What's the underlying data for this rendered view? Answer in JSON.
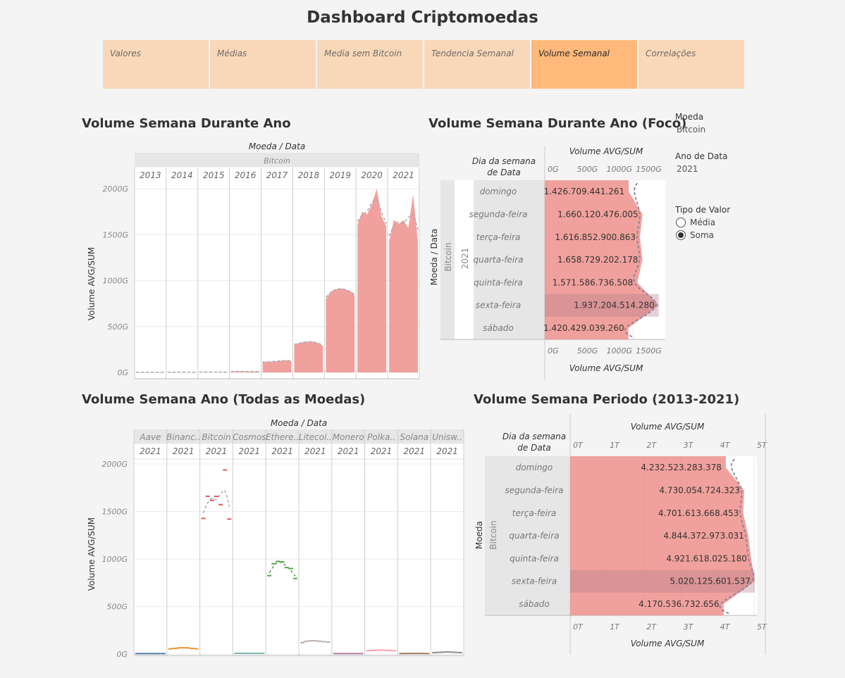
{
  "title": "Dashboard Criptomoedas",
  "tabs": [
    "Valores",
    "Médias",
    "Media sem Bitcoin",
    "Tendencia Semanal",
    "Volume Semanal",
    "Correlações"
  ],
  "active_tab": "Volume Semanal",
  "accent_colors": {
    "bar": "#ee8a84",
    "tab": "#f9d8ba",
    "tab_active": "#ffb97a"
  },
  "filters": {
    "moeda_label": "Moeda",
    "moeda_value": "Bitcoin",
    "ano_label": "Ano de Data",
    "ano_value": "2021",
    "tipo_label": "Tipo de Valor",
    "tipo_options": [
      "Média",
      "Soma"
    ],
    "tipo_selected": "Soma"
  },
  "chart1": {
    "title": "Volume Semana Durante Ano",
    "header_top": "Moeda / Data",
    "coin": "Bitcoin",
    "ylabel": "Volume AVG/SUM"
  },
  "chart2": {
    "title": "Volume Semana Durante Ano (Foco)",
    "col_header": "Dia da semana de Data",
    "axis_label": "Volume AVG/SUM",
    "row_header": "Moeda / Data",
    "coin": "Bitcoin",
    "year": "2021"
  },
  "chart3": {
    "title": "Volume Semana Ano (Todas as Moedas)",
    "header_top": "Moeda / Data",
    "ylabel": "Volume AVG/SUM"
  },
  "chart4": {
    "title": "Volume Semana Periodo (2013-2021)",
    "col_header": "Dia da semana de Data",
    "axis_label": "Volume AVG/SUM",
    "row_header": "Moeda",
    "coin": "Bitcoin"
  },
  "chart_data": [
    {
      "type": "area",
      "title": "Volume Semana Durante Ano",
      "ylabel": "Volume AVG/SUM",
      "yticks": [
        "0G",
        "500G",
        "1000G",
        "1500G",
        "2000G"
      ],
      "ylim": [
        0,
        2000
      ],
      "unit": "G",
      "categories": [
        "2013",
        "2014",
        "2015",
        "2016",
        "2017",
        "2018",
        "2019",
        "2020",
        "2021"
      ],
      "x_axis": "dia da semana (domingo..sábado) dentro de cada ano",
      "series": [
        {
          "values": [
            [
              1.5,
              1.8,
              1.8,
              1.7,
              1.6,
              1.4,
              1.2
            ],
            [
              2.5,
              3,
              3,
              2.8,
              2.6,
              2.4,
              2.2
            ],
            [
              3.5,
              4,
              4,
              3.8,
              3.6,
              3.3,
              3
            ],
            [
              10,
              11,
              11,
              11,
              10,
              10,
              9
            ],
            [
              110,
              115,
              118,
              122,
              128,
              132,
              125
            ],
            [
              300,
              320,
              330,
              335,
              335,
              320,
              290
            ],
            [
              800,
              880,
              905,
              915,
              905,
              890,
              835
            ],
            [
              1610,
              1750,
              1720,
              1830,
              2000,
              1700,
              1590
            ],
            [
              1427,
              1660,
              1617,
              1659,
              1572,
              1937,
              1420
            ]
          ]
        }
      ],
      "trend_lines": true,
      "grid": true
    },
    {
      "type": "bar",
      "orientation": "horizontal",
      "title": "Volume Semana Durante Ano (Foco)",
      "categories": [
        "domingo",
        "segunda-feira",
        "terça-feira",
        "quarta-feira",
        "quinta-feira",
        "sexta-feira",
        "sábado"
      ],
      "values": [
        1426709441261,
        1660120476005,
        1616852900863,
        1658729202178,
        1571586736508,
        1937204514280,
        1420429039260
      ],
      "labels": [
        "1.426.709.441.261",
        "1.660.120.476.005",
        "1.616.852.900.863",
        "1.658.729.202.178",
        "1.571.586.736.508",
        "1.937.204.514.280",
        "1.420.429.039.260"
      ],
      "xticks": [
        "0G",
        "500G",
        "1000G",
        "1500G"
      ],
      "xlim_G": [
        0,
        2000
      ]
    },
    {
      "type": "scatter",
      "title": "Volume Semana Ano (Todas as Moedas)",
      "ylabel": "Volume AVG/SUM",
      "yticks": [
        "0G",
        "500G",
        "1000G",
        "1500G",
        "2000G"
      ],
      "ylim": [
        0,
        2000
      ],
      "unit": "G",
      "categories": [
        "Aave",
        "Binanc..",
        "Bitcoin",
        "Cosmos",
        "Ethere..",
        "Litecoi..",
        "Monero",
        "Polka..",
        "Solana",
        "Unisw.."
      ],
      "year": "2021",
      "series": [
        {
          "name": "Aave",
          "color": "#4e79a7",
          "values": [
            5,
            5,
            5,
            5,
            5,
            5,
            5
          ]
        },
        {
          "name": "Binanc..",
          "color": "#f28e2b",
          "values": [
            55,
            60,
            65,
            66,
            65,
            60,
            55
          ]
        },
        {
          "name": "Bitcoin",
          "color": "#e15759",
          "values": [
            1427,
            1660,
            1617,
            1659,
            1572,
            1937,
            1420
          ]
        },
        {
          "name": "Cosmos",
          "color": "#76b7b2",
          "values": [
            8,
            8,
            8,
            8,
            8,
            8,
            8
          ]
        },
        {
          "name": "Ethere..",
          "color": "#59a14f",
          "values": [
            825,
            950,
            975,
            970,
            910,
            900,
            795
          ]
        },
        {
          "name": "Litecoi..",
          "color": "#bab0ac",
          "values": [
            120,
            135,
            140,
            140,
            135,
            130,
            125
          ]
        },
        {
          "name": "Monero",
          "color": "#b07aa1",
          "values": [
            5,
            5,
            5,
            5,
            5,
            5,
            5
          ]
        },
        {
          "name": "Polka..",
          "color": "#ff9da7",
          "values": [
            35,
            38,
            40,
            42,
            40,
            38,
            35
          ]
        },
        {
          "name": "Solana",
          "color": "#9c755f",
          "values": [
            5,
            6,
            6,
            6,
            6,
            6,
            5
          ]
        },
        {
          "name": "Unisw..",
          "color": "#8c8c8c",
          "values": [
            15,
            18,
            20,
            22,
            20,
            18,
            15
          ]
        }
      ]
    },
    {
      "type": "bar",
      "orientation": "horizontal",
      "title": "Volume Semana Periodo (2013-2021)",
      "categories": [
        "domingo",
        "segunda-feira",
        "terça-feira",
        "quarta-feira",
        "quinta-feira",
        "sexta-feira",
        "sábado"
      ],
      "values": [
        4232523283378,
        4730054724323,
        4701613668453,
        4844372973031,
        4921618025180,
        5020125601537,
        4170536732656
      ],
      "labels": [
        "4.232.523.283.378",
        "4.730.054.724.323",
        "4.701.613.668.453",
        "4.844.372.973.031",
        "4.921.618.025.180",
        "5.020.125.601.537",
        "4.170.536.732.656"
      ],
      "xticks": [
        "0T",
        "1T",
        "2T",
        "3T",
        "4T",
        "5T"
      ],
      "xlim_T": [
        0,
        5
      ]
    }
  ]
}
